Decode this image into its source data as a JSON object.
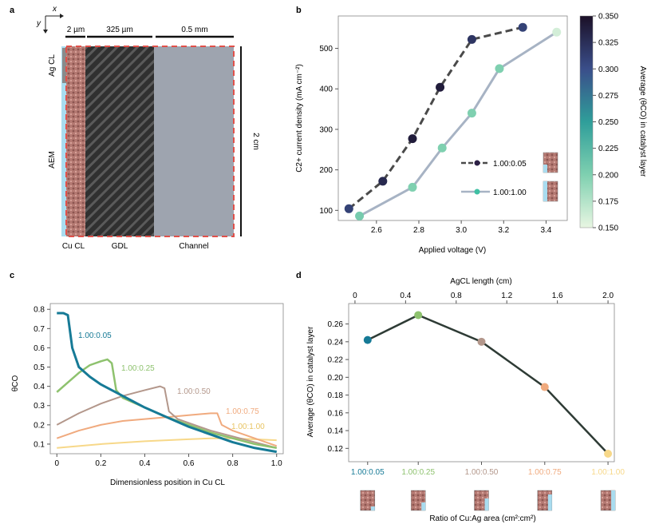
{
  "panels": {
    "a": {
      "label": "a",
      "axes": {
        "x": "x",
        "y": "y"
      },
      "dims": {
        "cl": "2 µm",
        "gdl": "325 µm",
        "channel": "0.5 mm",
        "height": "2 cm"
      },
      "layers": {
        "ag_cl": "Ag CL",
        "aem": "AEM",
        "cu_cl": "Cu CL",
        "gdl": "GDL",
        "channel": "Channel"
      },
      "colors": {
        "aem": "#a9dcef",
        "cu_cl": "#b57a73",
        "gdl": "#2f2f2f",
        "channel": "#9ea4af",
        "border": "#e0504a"
      }
    },
    "b": {
      "label": "b"
    },
    "c": {
      "label": "c"
    },
    "d": {
      "label": "d"
    }
  },
  "chart_data": [
    {
      "id": "b",
      "type": "line",
      "xlabel": "Applied voltage (V)",
      "ylabel": "C2+ current density (mA cm⁻²)",
      "xlim": [
        2.42,
        3.5
      ],
      "ylim": [
        75,
        580
      ],
      "xticks": [
        "2.6",
        "2.8",
        "3.0",
        "3.2",
        "3.4"
      ],
      "yticks": [
        "100",
        "200",
        "300",
        "400",
        "500"
      ],
      "series": [
        {
          "name": "1.00:0.05",
          "style": "dashed",
          "line_color": "#4a4a4a",
          "x": [
            2.47,
            2.63,
            2.77,
            2.9,
            3.05,
            3.29
          ],
          "y": [
            104,
            172,
            277,
            404,
            522,
            552
          ],
          "c": [
            0.31,
            0.33,
            0.34,
            0.34,
            0.32,
            0.31
          ]
        },
        {
          "name": "1.00:1.00",
          "style": "solid",
          "line_color": "#a7b3c4",
          "x": [
            2.52,
            2.77,
            2.91,
            3.05,
            3.18,
            3.45
          ],
          "y": [
            86,
            157,
            254,
            340,
            450,
            540
          ],
          "c": [
            0.205,
            0.2,
            0.2,
            0.2,
            0.2,
            0.16
          ]
        }
      ],
      "colorbar": {
        "label": "Average (θCO) in catalyst layer",
        "min": 0.15,
        "max": 0.35,
        "ticks": [
          "0.150",
          "0.175",
          "0.200",
          "0.225",
          "0.250",
          "0.275",
          "0.300",
          "0.325",
          "0.350"
        ]
      }
    },
    {
      "id": "c",
      "type": "line",
      "xlabel": "Dimensionless position in Cu CL",
      "ylabel": "θCO",
      "xlim": [
        -0.03,
        1.03
      ],
      "ylim": [
        0.05,
        0.83
      ],
      "xticks": [
        "0",
        "0.2",
        "0.4",
        "0.6",
        "0.8",
        "1.0"
      ],
      "yticks": [
        "0.1",
        "0.2",
        "0.3",
        "0.4",
        "0.5",
        "0.6",
        "0.7",
        "0.8"
      ],
      "series": [
        {
          "name": "1.00:0.05",
          "color": "#167a96",
          "width": 3,
          "x": [
            0,
            0.03,
            0.05,
            0.07,
            0.1,
            0.15,
            0.2,
            0.3,
            0.4,
            0.5,
            0.6,
            0.7,
            0.8,
            0.9,
            1.0
          ],
          "y": [
            0.78,
            0.78,
            0.77,
            0.6,
            0.5,
            0.45,
            0.41,
            0.35,
            0.29,
            0.24,
            0.19,
            0.15,
            0.11,
            0.08,
            0.06
          ]
        },
        {
          "name": "1.00:0.25",
          "color": "#8ec26e",
          "width": 2.5,
          "x": [
            0,
            0.05,
            0.1,
            0.15,
            0.2,
            0.23,
            0.25,
            0.27,
            0.3,
            0.4,
            0.5,
            0.6,
            0.7,
            0.8,
            0.9,
            1.0
          ],
          "y": [
            0.37,
            0.42,
            0.47,
            0.51,
            0.53,
            0.54,
            0.52,
            0.38,
            0.34,
            0.29,
            0.24,
            0.2,
            0.16,
            0.13,
            0.1,
            0.08
          ]
        },
        {
          "name": "1.00:0.50",
          "color": "#b3978b",
          "width": 2,
          "x": [
            0,
            0.1,
            0.2,
            0.3,
            0.4,
            0.47,
            0.49,
            0.51,
            0.55,
            0.6,
            0.7,
            0.8,
            0.9,
            1.0
          ],
          "y": [
            0.2,
            0.26,
            0.31,
            0.35,
            0.38,
            0.4,
            0.39,
            0.27,
            0.23,
            0.21,
            0.17,
            0.14,
            0.11,
            0.08
          ]
        },
        {
          "name": "1.00:0.75",
          "color": "#f0aa7e",
          "width": 2,
          "x": [
            0,
            0.1,
            0.2,
            0.3,
            0.4,
            0.5,
            0.6,
            0.7,
            0.73,
            0.75,
            0.8,
            0.9,
            1.0
          ],
          "y": [
            0.13,
            0.17,
            0.2,
            0.22,
            0.23,
            0.24,
            0.25,
            0.26,
            0.26,
            0.2,
            0.17,
            0.13,
            0.09
          ]
        },
        {
          "name": "1.00:1.00",
          "color": "#f7d889",
          "width": 2,
          "x": [
            0,
            0.2,
            0.4,
            0.6,
            0.7,
            0.8,
            0.9,
            1.0
          ],
          "y": [
            0.08,
            0.1,
            0.115,
            0.125,
            0.13,
            0.13,
            0.125,
            0.12
          ]
        }
      ]
    },
    {
      "id": "d",
      "type": "line",
      "xlabel": "Ratio of Cu:Ag area (cm²:cm²)",
      "top_xlabel": "AgCL length (cm)",
      "ylabel": "Average (θCO) in catalyst layer",
      "xlim": [
        -0.05,
        2.05
      ],
      "ylim": [
        0.105,
        0.283
      ],
      "top_xticks": [
        "0",
        "0.4",
        "0.8",
        "1.2",
        "1.6",
        "2.0"
      ],
      "yticks": [
        "0.12",
        "0.14",
        "0.16",
        "0.18",
        "0.20",
        "0.22",
        "0.24",
        "0.26"
      ],
      "categories": [
        "1.00:0.05",
        "1.00:0.25",
        "1.00:0.50",
        "1.00:0.75",
        "1.00:1.00"
      ],
      "category_colors": [
        "#167a96",
        "#8ec26e",
        "#b3978b",
        "#f0aa7e",
        "#f7d889"
      ],
      "x": [
        0.1,
        0.5,
        1.0,
        1.5,
        2.0
      ],
      "values": [
        0.242,
        0.27,
        0.24,
        0.189,
        0.114
      ]
    }
  ]
}
